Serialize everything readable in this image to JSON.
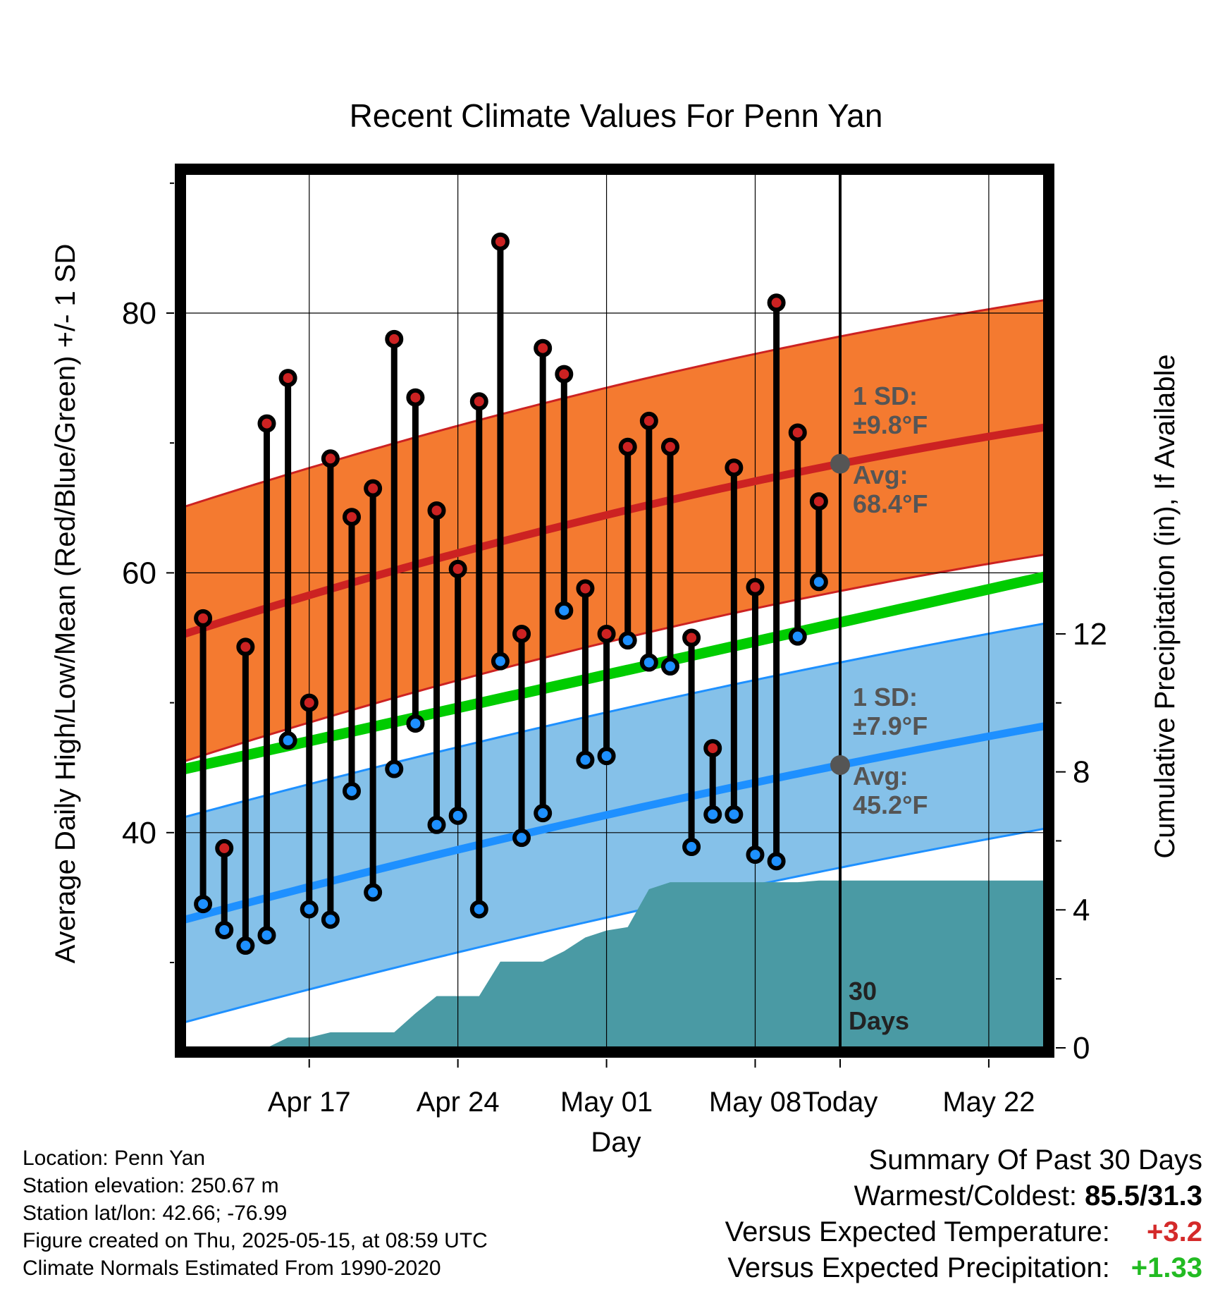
{
  "chart_data": {
    "type": "line",
    "title": "Recent Climate Values For Penn Yan",
    "xlabel": "Day",
    "ylabel": "Average Daily High/Low/Mean (Red/Blue/Green) +/- 1 SD",
    "y2label": "Cumulative Precipitation (in), If Available",
    "x_ticks": [
      "Apr 17",
      "Apr 24",
      "May 01",
      "May 08",
      "Today",
      "May 22"
    ],
    "y_ticks": [
      "40",
      "60",
      "80"
    ],
    "y2_ticks": [
      "0",
      "4",
      "8",
      "12"
    ],
    "xlim_day_offsets": [
      -31,
      10
    ],
    "ylim": [
      24,
      90
    ],
    "y2lim": [
      0,
      25
    ],
    "grid": true,
    "today_marker": "30\nDays",
    "today_label_lines": [
      "30",
      "Days"
    ],
    "days": [
      "Apr 15",
      "Apr 16",
      "Apr 17",
      "Apr 18",
      "Apr 19",
      "Apr 20",
      "Apr 21",
      "Apr 22",
      "Apr 23",
      "Apr 24",
      "Apr 25",
      "Apr 26",
      "Apr 27",
      "Apr 28",
      "Apr 29",
      "Apr 30",
      "May 01",
      "May 02",
      "May 03",
      "May 04",
      "May 05",
      "May 06",
      "May 07",
      "May 08",
      "May 09",
      "May 10",
      "May 11",
      "May 12",
      "May 13",
      "May 14"
    ],
    "series": [
      {
        "name": "High",
        "color": "#cc2222",
        "values": [
          56.5,
          38.8,
          54.3,
          71.5,
          75.0,
          50.0,
          68.8,
          64.3,
          66.5,
          78.0,
          73.5,
          64.8,
          60.3,
          73.2,
          85.5,
          55.3,
          77.3,
          75.3,
          58.8,
          55.3,
          69.7,
          71.7,
          69.7,
          55.0,
          46.5,
          68.1,
          58.9,
          80.8,
          70.8,
          65.5
        ]
      },
      {
        "name": "Low",
        "color": "#1e90ff",
        "values": [
          34.5,
          32.5,
          31.3,
          32.1,
          47.1,
          34.1,
          33.3,
          43.2,
          35.4,
          44.9,
          48.4,
          40.6,
          41.3,
          34.1,
          53.2,
          39.6,
          41.5,
          57.1,
          45.6,
          45.9,
          54.8,
          53.1,
          52.8,
          38.9,
          41.4,
          41.4,
          38.3,
          37.8,
          55.1,
          59.3
        ]
      }
    ],
    "normals": {
      "high_avg": {
        "color": "#cc2222",
        "start": 55.3,
        "today": 68.4,
        "end": 71.2
      },
      "high_band_sd": 9.8,
      "low_avg": {
        "color": "#1e90ff",
        "start": 33.3,
        "today": 45.2,
        "end": 48.2
      },
      "low_band_sd": 7.9,
      "mean_avg": {
        "color": "#00cc00",
        "start": 44.9,
        "end": 59.7
      },
      "high_band_color": "#f47a30",
      "low_band_color": "#85c1e9"
    },
    "precip_cumulative": {
      "color": "#4a9aa4",
      "values": [
        0.0,
        0.0,
        0.0,
        0.0,
        0.3,
        0.3,
        0.45,
        0.45,
        0.45,
        0.45,
        1.0,
        1.5,
        1.5,
        1.5,
        2.5,
        2.5,
        2.5,
        2.8,
        3.2,
        3.4,
        3.5,
        4.6,
        4.8,
        4.8,
        4.8,
        4.8,
        4.8,
        4.8,
        4.8,
        4.85
      ],
      "final": 4.85
    },
    "annotations": {
      "high_sd_label": "1 SD:",
      "high_sd_value": "±9.8°F",
      "high_avg_label": "Avg:",
      "high_avg_value": "68.4°F",
      "low_sd_label": "1 SD:",
      "low_sd_value": "±7.9°F",
      "low_avg_label": "Avg:",
      "low_avg_value": "45.2°F"
    }
  },
  "footer": {
    "location": "Location: Penn Yan",
    "elevation": "Station elevation: 250.67 m",
    "latlon": "Station lat/lon: 42.66; -76.99",
    "created": "Figure created on Thu, 2025-05-15, at 08:59 UTC",
    "normals": "Climate Normals Estimated From 1990-2020"
  },
  "summary": {
    "title": "Summary Of Past 30 Days",
    "warm_cold_label": "Warmest/Coldest:",
    "warm_cold_value": "85.5/31.3",
    "temp_label": "Versus Expected Temperature:",
    "temp_value": "+3.2",
    "precip_label": "Versus Expected Precipitation:",
    "precip_value": "+1.33"
  }
}
